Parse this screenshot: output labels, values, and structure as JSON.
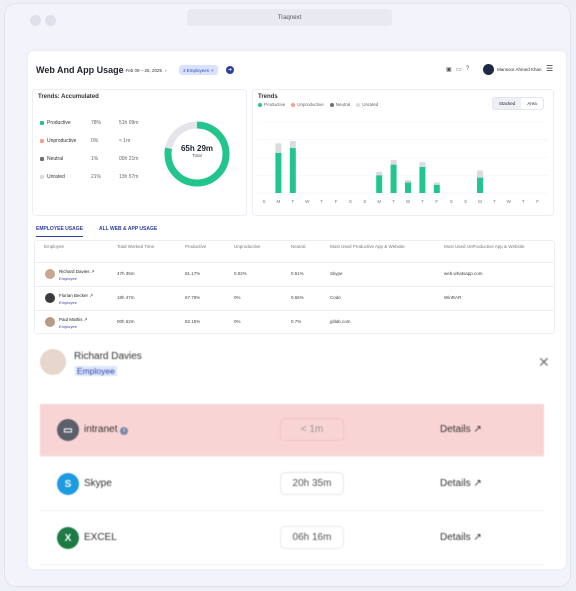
{
  "window": {
    "url": "Traqnext"
  },
  "header": {
    "title": "Web And App Usage",
    "date_range": "Feb 09 – 25, 2025",
    "employee_filter": "3 Employees",
    "user_name": "Mansoor Ahmed Khan"
  },
  "accumulated": {
    "title": "Trends: Accumulated",
    "stats": [
      {
        "name": "Productive",
        "pct": "78%",
        "time": "51h 09m",
        "color": "#22c58b"
      },
      {
        "name": "Unproductive",
        "pct": "0%",
        "time": "< 1m",
        "color": "#f4a38a"
      },
      {
        "name": "Neutral",
        "pct": "1%",
        "time": "00h 21m",
        "color": "#6b6f7e"
      },
      {
        "name": "Unrated",
        "pct": "21%",
        "time": "13h 57m",
        "color": "#d9dbe3"
      }
    ],
    "donut_total": "65h 29m",
    "donut_label": "Total",
    "productive_fraction": 0.78
  },
  "trends": {
    "title": "Trends",
    "legend": [
      {
        "name": "Productive",
        "color": "#22c58b"
      },
      {
        "name": "Unproductive",
        "color": "#f4a38a"
      },
      {
        "name": "Neutral",
        "color": "#6b6f7e"
      },
      {
        "name": "Unrated",
        "color": "#d9dbe3"
      }
    ],
    "toggle": [
      "Stacked",
      "Area"
    ]
  },
  "chart_data": {
    "type": "bar",
    "categories": [
      "S",
      "M",
      "T",
      "W",
      "T",
      "F",
      "S",
      "S",
      "M",
      "T",
      "W",
      "T",
      "F",
      "S",
      "S",
      "M",
      "T",
      "W",
      "T",
      "F"
    ],
    "series": [
      {
        "name": "Productive",
        "values": [
          0,
          34,
          38,
          0,
          0,
          0,
          0,
          0,
          15,
          24,
          9,
          22,
          7,
          0,
          0,
          13,
          0,
          0,
          0,
          0
        ]
      },
      {
        "name": "Unrated",
        "values": [
          0,
          8,
          6,
          0,
          0,
          0,
          0,
          0,
          3,
          4,
          2,
          4,
          2,
          0,
          0,
          6,
          0,
          0,
          0,
          0
        ]
      }
    ],
    "ylim": [
      0,
      60
    ]
  },
  "tabs": [
    "EMPLOYEE USAGE",
    "ALL WEB & APP USAGE"
  ],
  "table": {
    "headers": [
      "Employee",
      "Total Worked Time",
      "Productive",
      "Unproductive",
      "Neutral",
      "Most Used Productive App & Website",
      "Most Used UnProductive App & Website"
    ],
    "rows": [
      {
        "name": "Richard Davies",
        "role": "Employee",
        "total": "47h 35m",
        "productive": "81.17%",
        "unproductive": "0.02%",
        "neutral": "0.51%",
        "prod_app": "Skype",
        "unprod_app": "web.whatsapp.com"
      },
      {
        "name": "Florian Becker",
        "role": "Employee",
        "total": "19h 47m",
        "productive": "67.79%",
        "unproductive": "0%",
        "neutral": "0.65%",
        "prod_app": "Code",
        "unprod_app": "WinRAR"
      },
      {
        "name": "Paul Mathis",
        "role": "Employee",
        "total": "00h 52m",
        "productive": "82.15%",
        "unproductive": "0%",
        "neutral": "0.7%",
        "prod_app": "gitlab.com",
        "unprod_app": ""
      }
    ]
  },
  "detail": {
    "name": "Richard Davies",
    "role": "Employee",
    "apps": [
      {
        "name": "intranet",
        "time": "< 1m",
        "details": "Details",
        "highlight": true
      },
      {
        "name": "Skype",
        "time": "20h 35m",
        "details": "Details",
        "highlight": false
      },
      {
        "name": "EXCEL",
        "time": "06h 16m",
        "details": "Details",
        "highlight": false
      }
    ]
  }
}
